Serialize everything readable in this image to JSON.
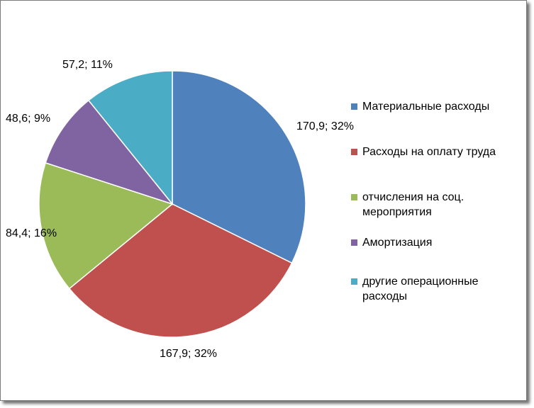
{
  "chart_data": {
    "type": "pie",
    "slices": [
      {
        "label": "Материальные расходы",
        "value": 170.9,
        "percent": 32,
        "data_label": "170,9; 32%",
        "color": "#4f81bd"
      },
      {
        "label": "Расходы на оплату труда",
        "value": 167.9,
        "percent": 32,
        "data_label": "167,9; 32%",
        "color": "#c0504d"
      },
      {
        "label": "отчисления на соц. мероприятия",
        "value": 84.4,
        "percent": 16,
        "data_label": "84,4; 16%",
        "color": "#9bbb59"
      },
      {
        "label": "Амортизация",
        "value": 48.6,
        "percent": 9,
        "data_label": "48,6; 9%",
        "color": "#8064a2"
      },
      {
        "label": "другие операционные расходы",
        "value": 57.2,
        "percent": 11,
        "data_label": "57,2; 11%",
        "color": "#4bacc6"
      }
    ],
    "legend_position": "right",
    "start_angle": "12 o'clock, clockwise"
  }
}
